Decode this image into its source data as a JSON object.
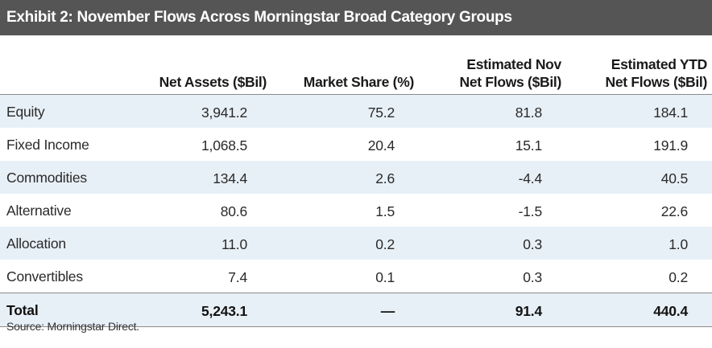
{
  "chart_data": {
    "type": "table",
    "title": "Exhibit 2: November Flows Across Morningstar Broad Category Groups",
    "columns": [
      "",
      "Net Assets ($Bil)",
      "Market Share (%)",
      "Estimated Nov Net Flows ($Bil)",
      "Estimated YTD Net Flows ($Bil)"
    ],
    "header_lines": [
      [
        ""
      ],
      [
        "Net Assets ($Bil)"
      ],
      [
        "Market Share (%)"
      ],
      [
        "Estimated Nov",
        "Net Flows ($Bil)"
      ],
      [
        "Estimated YTD",
        "Net Flows ($Bil)"
      ]
    ],
    "rows": [
      [
        "Equity",
        "3,941.2",
        "75.2",
        "81.8",
        "184.1"
      ],
      [
        "Fixed Income",
        "1,068.5",
        "20.4",
        "15.1",
        "191.9"
      ],
      [
        "Commodities",
        "134.4",
        "2.6",
        "-4.4",
        "40.5"
      ],
      [
        "Alternative",
        "80.6",
        "1.5",
        "-1.5",
        "22.6"
      ],
      [
        "Allocation",
        "11.0",
        "0.2",
        "0.3",
        "1.0"
      ],
      [
        "Convertibles",
        "7.4",
        "0.1",
        "0.3",
        "0.2"
      ]
    ],
    "total": [
      "Total",
      "5,243.1",
      "—",
      "91.4",
      "440.4"
    ],
    "source": "Source: Morningstar Direct."
  },
  "colors": {
    "title_bar": "#555555",
    "row_shade": "#e8f0f7",
    "rule": "#8a8a8a"
  }
}
